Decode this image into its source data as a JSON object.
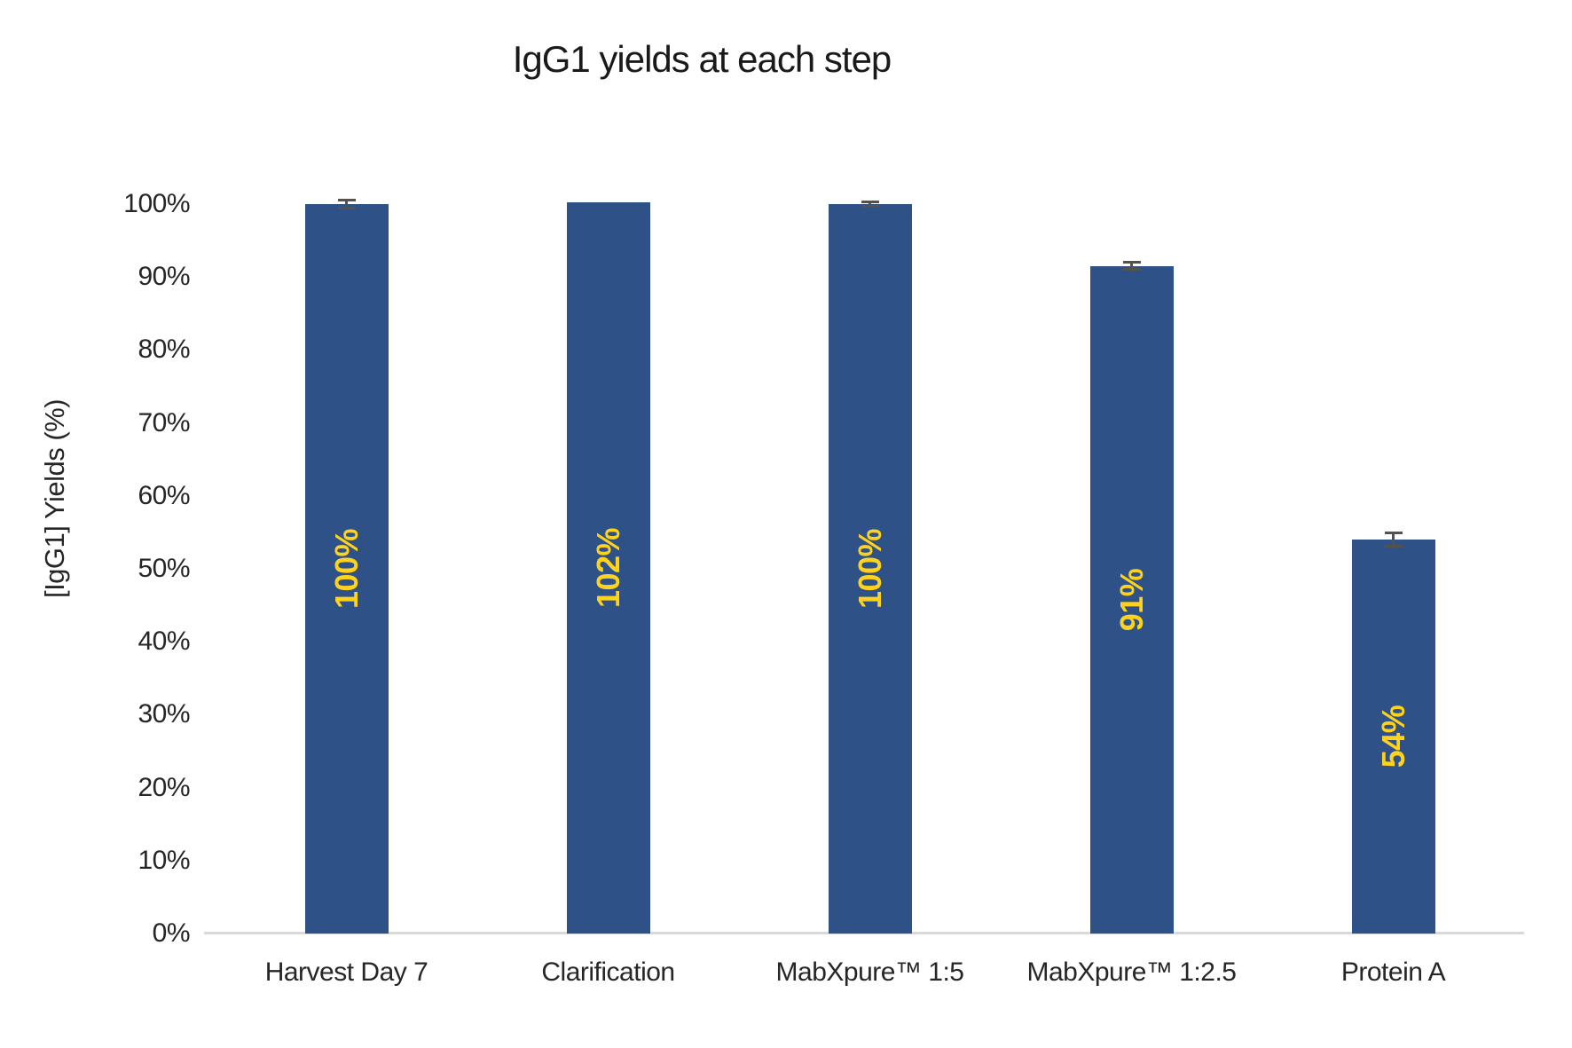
{
  "chart_data": {
    "type": "bar",
    "title": "IgG1 yields at each step",
    "xlabel": "",
    "ylabel": "[IgG1] Yields (%)",
    "categories": [
      "Harvest Day 7",
      "Clarification",
      "MabXpure™ 1:5",
      "MabXpure™ 1:2.5",
      "Protein A"
    ],
    "values": [
      100,
      102,
      100,
      91,
      54
    ],
    "bar_labels": [
      "100%",
      "102%",
      "100%",
      "91%",
      "54%"
    ],
    "displayed_heights_pct": [
      100,
      100.3,
      100,
      91.5,
      54
    ],
    "error_bars_pct": [
      0.5,
      null,
      0.3,
      0.5,
      0.9
    ],
    "y_ticks": [
      "0%",
      "10%",
      "20%",
      "30%",
      "40%",
      "50%",
      "60%",
      "70%",
      "80%",
      "90%",
      "100%"
    ],
    "ylim": [
      0,
      100
    ],
    "grid": false,
    "legend": null,
    "colors": {
      "bar": "#2e5287",
      "value_label": "#ffd21e",
      "error_bar": "#55524e",
      "axis_line": "#d9d9d9",
      "text": "#262626"
    }
  }
}
